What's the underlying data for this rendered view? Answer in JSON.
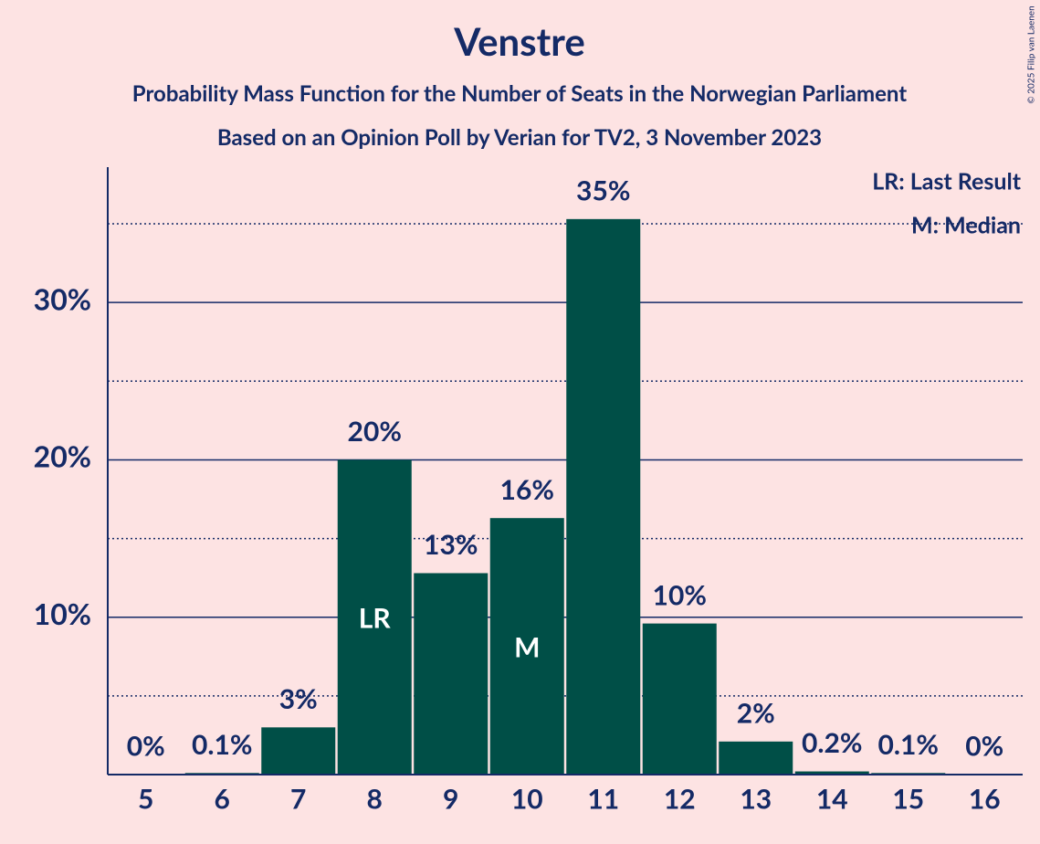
{
  "chart_data": {
    "type": "bar",
    "title": "Venstre",
    "subtitle": "Probability Mass Function for the Number of Seats in the Norwegian Parliament",
    "subtitle2": "Based on an Opinion Poll by Verian for TV2, 3 November 2023",
    "categories": [
      "5",
      "6",
      "7",
      "8",
      "9",
      "10",
      "11",
      "12",
      "13",
      "14",
      "15",
      "16"
    ],
    "values": [
      0,
      0.1,
      3.0,
      20.0,
      12.8,
      16.3,
      35.3,
      9.6,
      2.1,
      0.2,
      0.1,
      0
    ],
    "value_labels": [
      "0%",
      "0.1%",
      "3%",
      "20%",
      "13%",
      "16%",
      "35%",
      "10%",
      "2%",
      "0.2%",
      "0.1%",
      "0%"
    ],
    "color": "#004f47",
    "ylim": [
      0,
      38.6
    ],
    "yticks": [
      {
        "value": 10,
        "label": "10%"
      },
      {
        "value": 20,
        "label": "20%"
      },
      {
        "value": 30,
        "label": "30%"
      }
    ],
    "minor_yticks": [
      5,
      15,
      25,
      35
    ],
    "grid": true,
    "bar_annotations": [
      {
        "category": "8",
        "label": "LR"
      },
      {
        "category": "10",
        "label": "M"
      }
    ],
    "legend": [
      "LR: Last Result",
      "M: Median"
    ],
    "legend_position": "upper right",
    "copyright": "© 2025 Filip van Laenen"
  }
}
